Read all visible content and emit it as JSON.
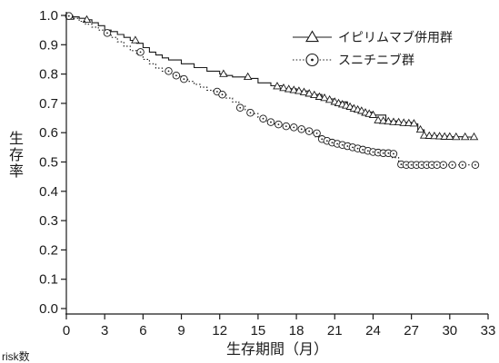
{
  "chart_data": {
    "type": "line",
    "title": "",
    "xlabel": "生存期間（月）",
    "ylabel": "生存率",
    "xlim": [
      0,
      33
    ],
    "ylim": [
      0.0,
      1.0
    ],
    "xticks": [
      "0",
      "3",
      "6",
      "9",
      "12",
      "15",
      "18",
      "21",
      "24",
      "27",
      "30",
      "33"
    ],
    "yticks": [
      "0.0",
      "0.1",
      "0.2",
      "0.3",
      "0.4",
      "0.5",
      "0.6",
      "0.7",
      "0.8",
      "0.9",
      "1.0"
    ],
    "grid": false,
    "legend_position": "top-right",
    "series": [
      {
        "name": "イピリムマブ併用群",
        "line_style": "solid",
        "marker": "triangle",
        "color": "#1a1a1a",
        "x": [
          0,
          0.5,
          1,
          1.5,
          2,
          2.5,
          3,
          3.5,
          4,
          4.5,
          5,
          5.5,
          6,
          6.5,
          7,
          7.5,
          8,
          9,
          10,
          11,
          12,
          12.5,
          13,
          14,
          15,
          16,
          17,
          18,
          19,
          20,
          21,
          22,
          22.5,
          23,
          24,
          25,
          26,
          27,
          27.5,
          28,
          29,
          30,
          31,
          32
        ],
        "y": [
          1.0,
          0.995,
          0.99,
          0.985,
          0.975,
          0.965,
          0.95,
          0.945,
          0.935,
          0.925,
          0.915,
          0.905,
          0.89,
          0.875,
          0.865,
          0.855,
          0.848,
          0.835,
          0.822,
          0.81,
          0.8,
          0.795,
          0.79,
          0.785,
          0.77,
          0.76,
          0.75,
          0.742,
          0.73,
          0.715,
          0.705,
          0.69,
          0.68,
          0.67,
          0.66,
          0.64,
          0.635,
          0.63,
          0.61,
          0.59,
          0.588,
          0.586,
          0.585,
          0.585
        ],
        "censored_x": [
          0.3,
          1.6,
          5.4,
          12.3,
          14.2,
          16.5,
          17.0,
          17.4,
          17.8,
          18.2,
          18.6,
          19.0,
          19.4,
          19.8,
          20.2,
          20.6,
          21.0,
          21.3,
          21.6,
          21.9,
          22.2,
          22.5,
          22.8,
          23.1,
          23.4,
          23.7,
          24.0,
          24.4,
          24.8,
          25.2,
          25.6,
          26.0,
          26.4,
          26.8,
          27.2,
          27.7,
          28.0,
          28.4,
          28.8,
          29.2,
          29.6,
          30.0,
          30.5,
          31.2,
          31.9
        ],
        "censored_y": [
          0.995,
          0.985,
          0.915,
          0.8,
          0.79,
          0.758,
          0.752,
          0.748,
          0.745,
          0.742,
          0.738,
          0.733,
          0.728,
          0.722,
          0.718,
          0.712,
          0.705,
          0.7,
          0.696,
          0.692,
          0.688,
          0.682,
          0.678,
          0.674,
          0.668,
          0.664,
          0.66,
          0.642,
          0.64,
          0.638,
          0.636,
          0.635,
          0.633,
          0.632,
          0.631,
          0.61,
          0.59,
          0.589,
          0.588,
          0.587,
          0.586,
          0.586,
          0.585,
          0.585,
          0.585
        ]
      },
      {
        "name": "スニチニブ群",
        "line_style": "dotted",
        "marker": "circle",
        "color": "#1a1a1a",
        "x": [
          0,
          0.5,
          1,
          1.5,
          2,
          2.5,
          3,
          3.5,
          4,
          4.5,
          5,
          5.5,
          6,
          6.5,
          7,
          7.5,
          8,
          8.5,
          9,
          9.5,
          10,
          10.5,
          11,
          11.5,
          12,
          12.5,
          13,
          13.5,
          14,
          14.5,
          15,
          15.5,
          16,
          17,
          18,
          19,
          19.5,
          20,
          21,
          22,
          23,
          24,
          25,
          25.5,
          26,
          27,
          28,
          29,
          30,
          31,
          32
        ],
        "y": [
          1.0,
          0.99,
          0.98,
          0.97,
          0.96,
          0.95,
          0.94,
          0.925,
          0.91,
          0.895,
          0.88,
          0.865,
          0.85,
          0.835,
          0.82,
          0.81,
          0.8,
          0.792,
          0.785,
          0.775,
          0.765,
          0.755,
          0.745,
          0.738,
          0.73,
          0.718,
          0.705,
          0.69,
          0.678,
          0.665,
          0.652,
          0.64,
          0.63,
          0.62,
          0.61,
          0.6,
          0.585,
          0.57,
          0.56,
          0.55,
          0.54,
          0.53,
          0.53,
          0.515,
          0.49,
          0.49,
          0.49,
          0.49,
          0.49,
          0.49,
          0.49
        ],
        "censored_x": [
          0.2,
          3.2,
          5.8,
          8.0,
          8.6,
          9.2,
          11.8,
          12.2,
          13.6,
          14.4,
          15.4,
          16.0,
          16.6,
          17.2,
          17.8,
          18.4,
          19.0,
          19.6,
          20.0,
          20.4,
          20.8,
          21.2,
          21.6,
          22.0,
          22.4,
          22.8,
          23.2,
          23.6,
          24.0,
          24.4,
          24.8,
          25.2,
          25.6,
          26.2,
          26.6,
          27.0,
          27.4,
          27.8,
          28.2,
          28.6,
          29.0,
          29.5,
          30.2,
          31.0,
          32.0
        ],
        "censored_y": [
          0.998,
          0.94,
          0.875,
          0.81,
          0.795,
          0.783,
          0.74,
          0.73,
          0.685,
          0.668,
          0.648,
          0.636,
          0.628,
          0.622,
          0.618,
          0.612,
          0.605,
          0.598,
          0.578,
          0.572,
          0.566,
          0.562,
          0.558,
          0.554,
          0.55,
          0.546,
          0.542,
          0.538,
          0.534,
          0.532,
          0.53,
          0.53,
          0.528,
          0.492,
          0.49,
          0.49,
          0.49,
          0.49,
          0.49,
          0.49,
          0.49,
          0.49,
          0.49,
          0.49,
          0.49
        ]
      }
    ],
    "footnote": "risk数"
  }
}
